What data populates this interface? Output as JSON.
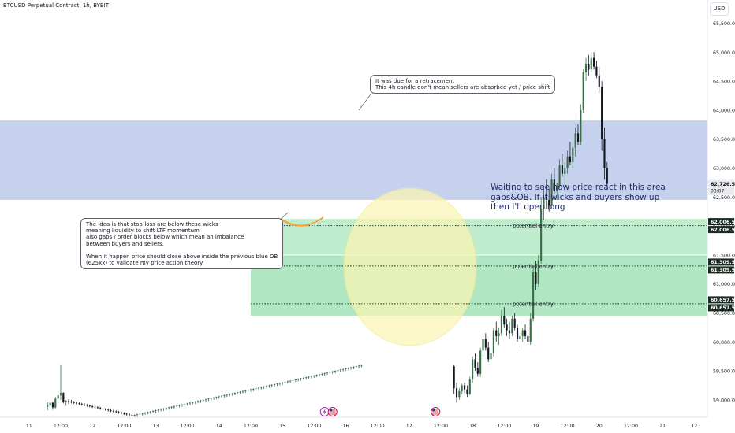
{
  "header": {
    "title": "BTCUSD Perpetual Contract, 1h, BYBIT",
    "currency_label": "USD"
  },
  "notes": {
    "retracement": "It was due for a retracement\nThis 4h candle don't mean sellers are absorbed yet / price shift",
    "stoploss": "The idea is that stop-loss are below these wicks\nmeaning liquidity to shift LTF momentum\nalso gaps / order blocks below which mean an imbalance\nbetween buyers and sellers.\n\nWhen it happen price should close above inside the previous blue OB\n(625xx) to validate my price action theory.",
    "waiting": "Waiting to see how price react in this area\ngaps&OB. If it wicks and buyers show up\nthen I'll open long"
  },
  "colors": {
    "up": "#3a6e48",
    "down": "#131722",
    "blue_zone": "#b3c2e8",
    "green_zone": "#6fd48f",
    "circle_fill": "#fbf5b4",
    "arc": "#f7a23b",
    "price_tag": "#1a2b22",
    "current_tag": "#131722"
  },
  "chart_data": {
    "type": "candlestick",
    "symbol": "BTCUSD Perpetual Contract",
    "interval": "1h",
    "exchange": "BYBIT",
    "ylim": [
      58700,
      65900
    ],
    "y_ticks": [
      "59,000.0",
      "59,500.0",
      "60,000.0",
      "60,500.0",
      "61,000.0",
      "61,500.0",
      "62,000.0",
      "62,500.0",
      "63,000.0",
      "63,500.0",
      "64,000.0",
      "64,500.0",
      "65,000.0",
      "65,500.0"
    ],
    "y_tick_values": [
      59000,
      59500,
      60000,
      60500,
      61000,
      61500,
      62000,
      62500,
      63000,
      63500,
      64000,
      64500,
      65000,
      65500
    ],
    "x_ticks": [
      "11",
      "12:00",
      "12",
      "12:00",
      "13",
      "12:00",
      "14",
      "12:00",
      "15",
      "12:00",
      "16",
      "12:00",
      "17",
      "12:00",
      "18",
      "12:00",
      "19",
      "12:00",
      "20",
      "12:00",
      "21",
      "12"
    ],
    "x_tick_hours": [
      0,
      12,
      24,
      36,
      48,
      60,
      72,
      84,
      96,
      108,
      120,
      132,
      144,
      156,
      168,
      180,
      192,
      204,
      216,
      228,
      240,
      252
    ],
    "x_range_hours": [
      -11,
      257
    ],
    "candles_start_hour": 7,
    "candles": [
      [
        58880,
        58960,
        58820,
        58900
      ],
      [
        58900,
        58990,
        58860,
        58950
      ],
      [
        58950,
        58970,
        58830,
        58870
      ],
      [
        58870,
        59050,
        58850,
        59020
      ],
      [
        59020,
        59150,
        58980,
        59080
      ],
      [
        59080,
        59600,
        59000,
        59120
      ],
      [
        59120,
        59130,
        58940,
        58960
      ],
      [
        58960,
        59000,
        58900,
        58980
      ],
      [
        58980,
        59010,
        58930,
        58970
      ],
      [
        58970,
        59000,
        58940,
        58960
      ],
      [
        58960,
        58980,
        58930,
        58950
      ],
      [
        58950,
        58970,
        58920,
        58940
      ],
      [
        58940,
        58960,
        58910,
        58930
      ],
      [
        58930,
        58950,
        58900,
        58920
      ],
      [
        58920,
        58940,
        58890,
        58910
      ],
      [
        58910,
        58930,
        58880,
        58900
      ],
      [
        58900,
        58920,
        58870,
        58890
      ],
      [
        58890,
        58910,
        58860,
        58880
      ],
      [
        58880,
        58900,
        58850,
        58870
      ],
      [
        58870,
        58890,
        58840,
        58860
      ],
      [
        58860,
        58880,
        58830,
        58850
      ],
      [
        58850,
        58870,
        58820,
        58840
      ],
      [
        58840,
        58860,
        58810,
        58830
      ],
      [
        58830,
        58850,
        58800,
        58820
      ],
      [
        58820,
        58840,
        58790,
        58810
      ],
      [
        58810,
        58830,
        58780,
        58800
      ],
      [
        58800,
        58820,
        58770,
        58790
      ],
      [
        58790,
        58810,
        58760,
        58780
      ],
      [
        58780,
        58800,
        58750,
        58770
      ],
      [
        58770,
        58790,
        58740,
        58760
      ],
      [
        58760,
        58780,
        58730,
        58750
      ],
      [
        58750,
        58770,
        58720,
        58740
      ],
      [
        58740,
        58760,
        58710,
        58730
      ],
      [
        58730,
        58750,
        58710,
        58740
      ],
      [
        58740,
        58760,
        58710,
        58750
      ],
      [
        58750,
        58770,
        58720,
        58760
      ],
      [
        58760,
        58780,
        58730,
        58770
      ],
      [
        58770,
        58790,
        58740,
        58780
      ],
      [
        58780,
        58800,
        58750,
        58790
      ],
      [
        58790,
        58810,
        58760,
        58800
      ],
      [
        58800,
        58820,
        58770,
        58810
      ],
      [
        58810,
        58830,
        58780,
        58820
      ],
      [
        58820,
        58840,
        58790,
        58830
      ],
      [
        58830,
        58850,
        58800,
        58840
      ],
      [
        58840,
        58860,
        58810,
        58850
      ],
      [
        58850,
        58870,
        58820,
        58860
      ],
      [
        58860,
        58880,
        58830,
        58870
      ],
      [
        58870,
        58890,
        58840,
        58880
      ],
      [
        58880,
        58900,
        58850,
        58890
      ],
      [
        58890,
        58910,
        58860,
        58900
      ],
      [
        58900,
        58920,
        58870,
        58910
      ],
      [
        58910,
        58930,
        58880,
        58920
      ],
      [
        58920,
        58940,
        58890,
        58930
      ],
      [
        58930,
        58950,
        58900,
        58940
      ],
      [
        58940,
        58960,
        58910,
        58950
      ],
      [
        58950,
        58970,
        58920,
        58960
      ],
      [
        58960,
        58980,
        58930,
        58970
      ],
      [
        58970,
        58990,
        58940,
        58980
      ],
      [
        58980,
        59000,
        58950,
        58990
      ],
      [
        58990,
        59010,
        58960,
        59000
      ],
      [
        59000,
        59020,
        58970,
        59010
      ],
      [
        59010,
        59030,
        58980,
        59020
      ],
      [
        59020,
        59040,
        58990,
        59030
      ],
      [
        59030,
        59050,
        59000,
        59040
      ],
      [
        59040,
        59060,
        59010,
        59050
      ],
      [
        59050,
        59070,
        59020,
        59060
      ],
      [
        59060,
        59080,
        59030,
        59070
      ],
      [
        59070,
        59090,
        59040,
        59080
      ],
      [
        59080,
        59100,
        59050,
        59090
      ],
      [
        59090,
        59110,
        59060,
        59100
      ],
      [
        59100,
        59120,
        59070,
        59110
      ],
      [
        59110,
        59130,
        59080,
        59120
      ],
      [
        59120,
        59140,
        59090,
        59130
      ],
      [
        59130,
        59150,
        59100,
        59140
      ],
      [
        59140,
        59160,
        59110,
        59150
      ],
      [
        59150,
        59170,
        59120,
        59160
      ],
      [
        59160,
        59180,
        59130,
        59170
      ],
      [
        59170,
        59190,
        59140,
        59180
      ],
      [
        59180,
        59200,
        59150,
        59190
      ],
      [
        59190,
        59210,
        59160,
        59200
      ],
      [
        59200,
        59220,
        59170,
        59210
      ],
      [
        59210,
        59230,
        59180,
        59220
      ],
      [
        59220,
        59240,
        59190,
        59230
      ],
      [
        59230,
        59250,
        59200,
        59240
      ],
      [
        59240,
        59260,
        59210,
        59250
      ],
      [
        59250,
        59270,
        59220,
        59260
      ],
      [
        59260,
        59280,
        59230,
        59270
      ],
      [
        59270,
        59290,
        59240,
        59280
      ],
      [
        59280,
        59300,
        59250,
        59290
      ],
      [
        59290,
        59310,
        59260,
        59300
      ],
      [
        59300,
        59320,
        59270,
        59310
      ],
      [
        59310,
        59330,
        59280,
        59320
      ],
      [
        59320,
        59340,
        59290,
        59330
      ],
      [
        59330,
        59350,
        59300,
        59340
      ],
      [
        59340,
        59360,
        59310,
        59350
      ],
      [
        59350,
        59370,
        59320,
        59360
      ],
      [
        59360,
        59380,
        59330,
        59370
      ],
      [
        59370,
        59390,
        59340,
        59380
      ],
      [
        59380,
        59400,
        59350,
        59390
      ],
      [
        59390,
        59410,
        59360,
        59400
      ],
      [
        59400,
        59420,
        59370,
        59410
      ],
      [
        59410,
        59430,
        59380,
        59420
      ],
      [
        59420,
        59440,
        59390,
        59430
      ],
      [
        59430,
        59450,
        59400,
        59440
      ],
      [
        59440,
        59460,
        59410,
        59450
      ],
      [
        59450,
        59470,
        59420,
        59460
      ],
      [
        59460,
        59480,
        59430,
        59470
      ],
      [
        59470,
        59490,
        59440,
        59480
      ],
      [
        59480,
        59500,
        59450,
        59490
      ],
      [
        59490,
        59510,
        59460,
        59500
      ],
      [
        59500,
        59520,
        59470,
        59510
      ],
      [
        59510,
        59530,
        59480,
        59520
      ],
      [
        59520,
        59540,
        59490,
        59530
      ],
      [
        59530,
        59550,
        59500,
        59540
      ],
      [
        59540,
        59560,
        59510,
        59550
      ],
      [
        59550,
        59570,
        59520,
        59560
      ],
      [
        59560,
        59580,
        59530,
        59570
      ],
      [
        59570,
        59590,
        59540,
        59580
      ],
      [
        59580,
        59600,
        59550,
        59590
      ],
      [
        59590,
        59610,
        59560,
        59600
      ]
    ],
    "zones": [
      {
        "kind": "order-block",
        "color": "blue",
        "from": 62450,
        "to": 63820,
        "start_hour": -11
      },
      {
        "kind": "gap",
        "color": "green",
        "from": 60450,
        "to": 62120,
        "start_hour": 84
      }
    ],
    "entry_levels": [
      {
        "price": 62006.5,
        "label": "potential entry"
      },
      {
        "price": 61309.5,
        "label": "potential entry"
      },
      {
        "price": 60657.5,
        "label": "potential entry"
      }
    ],
    "price_labels": [
      "62,006.5",
      "62,006.5",
      "61,309.5",
      "61,309.5",
      "60,657.5",
      "60,657.5"
    ],
    "current_price": {
      "value": 62726.5,
      "label": "62,726.5",
      "countdown": "08:07"
    },
    "events": [
      {
        "hour": 112,
        "icon": "bolt"
      },
      {
        "hour": 115,
        "icon": "us-flag"
      },
      {
        "hour": 154,
        "icon": "us-flag"
      }
    ]
  }
}
